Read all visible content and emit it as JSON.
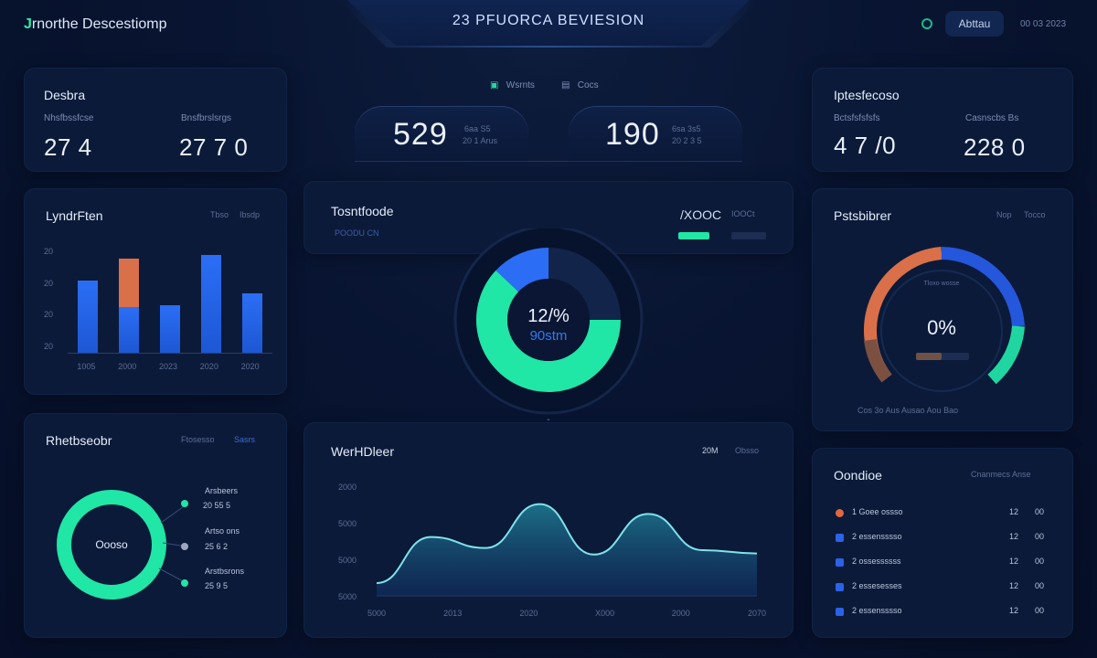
{
  "header": {
    "brand_mark": "J",
    "brand_text": "rnorthe Descestiomp",
    "title": "23 PFUORCA BEVIESION",
    "button_label": "Abttau",
    "meta": "00 03 2023"
  },
  "top_left": {
    "title": "Desbra",
    "labels": [
      "Nhsfbssfcse",
      "Bnsfbrslsrgs"
    ],
    "values": [
      "27 4",
      "27 7 0"
    ]
  },
  "center_kpis": {
    "tabs": [
      "Wsrnts",
      "Cocs"
    ],
    "items": [
      {
        "value": "529",
        "sub1": "6aa S5",
        "sub2": "20 1 Arus"
      },
      {
        "value": "190",
        "sub1": "6sa 3s5",
        "sub2": "20 2 3 5"
      }
    ]
  },
  "top_right": {
    "title": "Iptesfecoso",
    "labels": [
      "Bctsfsfsfsfs",
      "Casnscbs   Bs"
    ],
    "values": [
      "4 7 /0",
      "228 0"
    ]
  },
  "bar_panel": {
    "title": "LyndrFten",
    "legend": [
      "Tbso",
      "Ibsdp"
    ],
    "y_ticks": [
      "20",
      "20",
      "20",
      "20"
    ],
    "x_ticks": [
      "1005",
      "2000",
      "2023",
      "2020",
      "2020"
    ]
  },
  "chart_data": [
    {
      "type": "bar",
      "title": "LyndrFten",
      "categories": [
        "1005",
        "2000",
        "2023",
        "2020",
        "2020"
      ],
      "series": [
        {
          "name": "Tbso",
          "values": [
            80,
            50,
            52,
            108,
            66
          ]
        },
        {
          "name": "Ibsdp",
          "values": [
            0,
            54,
            0,
            0,
            0
          ]
        }
      ],
      "stacked": true,
      "ylim": [
        0,
        115
      ]
    },
    {
      "type": "pie",
      "title": "Tosntfoode",
      "center_value": "12/%",
      "center_sub": "90stm",
      "slices": [
        {
          "name": "Green",
          "value": 62
        },
        {
          "name": "Blue",
          "value": 13
        },
        {
          "name": "Rest",
          "value": 25
        }
      ]
    },
    {
      "type": "area",
      "title": "WerHDleer",
      "x_ticks": [
        "5000",
        "2013",
        "2020",
        "X000",
        "2000",
        "2070"
      ],
      "y_ticks": [
        "2000",
        "5000",
        "5000",
        "5000"
      ],
      "values": [
        10,
        52,
        42,
        82,
        36,
        73,
        40,
        37
      ]
    }
  ],
  "donut_panel": {
    "title": "Tosntfoode",
    "subtitle": "POODU CN",
    "legend_value": "/XOOC",
    "legend_label": "IOOCt"
  },
  "gauge_panel": {
    "title": "Pstsbibrer",
    "legend": [
      "Nop",
      "Tocco"
    ],
    "value": "0%",
    "inner_label": "Tloxo wosse",
    "footer": "Cos  3o  Aus Ausao Aou Bao"
  },
  "bottom_left": {
    "title": "Rhetbseobr",
    "legend": [
      "Ftosesso",
      "Sasrs"
    ],
    "center": "Oooso",
    "rows": [
      {
        "label": "Arsbeers",
        "value": "20 55 5"
      },
      {
        "label": "Artso ons",
        "value": "25 6 2"
      },
      {
        "label": "Arstbsrons",
        "value": "25 9 5"
      }
    ]
  },
  "area_panel": {
    "title": "WerHDleer",
    "legend": [
      "20M",
      "Obsso"
    ]
  },
  "ranking": {
    "title": "Oondioe",
    "header_right": "Cnanmecs  Anse",
    "rows": [
      {
        "label": "1 Goee ossso",
        "v1": "12",
        "v2": "00",
        "color": "#e2663f"
      },
      {
        "label": "2 essensssso",
        "v1": "12",
        "v2": "00",
        "color": "#2c62e8"
      },
      {
        "label": "2 ossessssss",
        "v1": "12",
        "v2": "00",
        "color": "#2c62e8"
      },
      {
        "label": "2 essesesses",
        "v1": "12",
        "v2": "00",
        "color": "#2c62e8"
      },
      {
        "label": "2 essensssso",
        "v1": "12",
        "v2": "00",
        "color": "#2c62e8"
      }
    ]
  },
  "colors": {
    "accent_green": "#20e6a6",
    "accent_blue": "#2b6ef5",
    "accent_orange": "#d9704a"
  }
}
